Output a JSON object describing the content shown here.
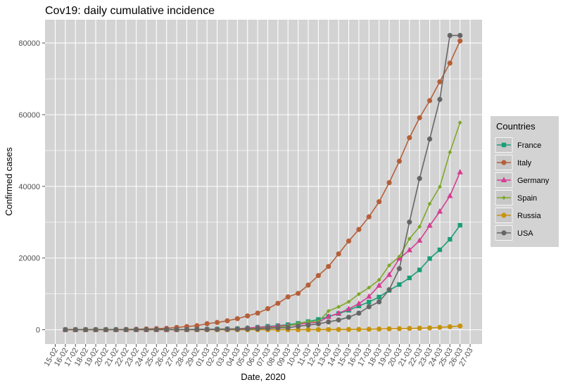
{
  "chart_data": {
    "type": "line",
    "title": "Cov19: daily cumulative incidence",
    "xlabel": "Date, 2020",
    "ylabel": "Confirmed cases",
    "x_tick_labels": [
      "15-02",
      "16-02",
      "17-02",
      "18-02",
      "19-02",
      "20-02",
      "21-02",
      "22-02",
      "23-02",
      "24-02",
      "25-02",
      "26-02",
      "27-02",
      "28-02",
      "29-02",
      "01-03",
      "02-03",
      "03-03",
      "04-03",
      "05-03",
      "06-03",
      "07-03",
      "08-03",
      "09-03",
      "10-03",
      "11-03",
      "12-03",
      "13-03",
      "14-03",
      "15-03",
      "16-03",
      "17-03",
      "18-03",
      "19-03",
      "20-03",
      "21-03",
      "22-03",
      "23-03",
      "24-03",
      "25-03",
      "26-03",
      "27-03"
    ],
    "x": [
      "16-02",
      "17-02",
      "18-02",
      "19-02",
      "20-02",
      "21-02",
      "22-02",
      "23-02",
      "24-02",
      "25-02",
      "26-02",
      "27-02",
      "28-02",
      "29-02",
      "01-03",
      "02-03",
      "03-03",
      "04-03",
      "05-03",
      "06-03",
      "07-03",
      "08-03",
      "09-03",
      "10-03",
      "11-03",
      "12-03",
      "13-03",
      "14-03",
      "15-03",
      "16-03",
      "17-03",
      "18-03",
      "19-03",
      "20-03",
      "21-03",
      "22-03",
      "23-03",
      "24-03",
      "25-03",
      "26-03"
    ],
    "y_ticks": [
      0,
      20000,
      40000,
      60000,
      80000
    ],
    "y_tick_labels": [
      "0",
      "20000",
      "40000",
      "60000",
      "80000"
    ],
    "ylim": [
      -4000,
      86500
    ],
    "grid": true,
    "legend": {
      "title": "Countries",
      "position": "right"
    },
    "series": [
      {
        "name": "France",
        "color": "#1b9e77",
        "marker": "square",
        "values": [
          12,
          12,
          12,
          12,
          12,
          12,
          12,
          12,
          12,
          14,
          18,
          38,
          57,
          100,
          130,
          191,
          212,
          285,
          423,
          653,
          949,
          1126,
          1412,
          1784,
          2281,
          2876,
          3661,
          4499,
          5423,
          6633,
          7730,
          9134,
          10995,
          12612,
          14459,
          16689,
          19856,
          22304,
          25233,
          29155
        ]
      },
      {
        "name": "Italy",
        "color": "#b5603a",
        "marker": "circle",
        "values": [
          3,
          3,
          3,
          3,
          3,
          20,
          79,
          150,
          229,
          322,
          400,
          650,
          888,
          1128,
          1694,
          2036,
          2502,
          3089,
          3858,
          4636,
          5883,
          7375,
          9172,
          10149,
          12462,
          15113,
          17660,
          21157,
          24747,
          27980,
          31506,
          35713,
          41035,
          47021,
          53578,
          59138,
          63927,
          69176,
          74386,
          80589
        ]
      },
      {
        "name": "Germany",
        "color": "#d63e94",
        "marker": "triangle",
        "values": [
          16,
          16,
          16,
          16,
          16,
          16,
          16,
          16,
          16,
          16,
          18,
          26,
          48,
          79,
          130,
          159,
          196,
          262,
          482,
          670,
          799,
          1040,
          1176,
          1457,
          1908,
          2078,
          3675,
          4585,
          5795,
          7272,
          9257,
          12327,
          15320,
          19848,
          22213,
          24873,
          29056,
          32986,
          37323,
          43938
        ]
      },
      {
        "name": "Spain",
        "color": "#7ea82b",
        "marker": "diamond",
        "values": [
          2,
          2,
          2,
          2,
          2,
          2,
          2,
          2,
          2,
          6,
          13,
          15,
          32,
          45,
          84,
          120,
          165,
          222,
          259,
          400,
          500,
          673,
          1073,
          1695,
          2277,
          2277,
          5232,
          6391,
          7798,
          9942,
          11748,
          13910,
          17963,
          20410,
          25374,
          28768,
          35136,
          39885,
          49515,
          57786
        ]
      },
      {
        "name": "Russia",
        "color": "#c8930c",
        "marker": "circle",
        "values": [
          2,
          2,
          2,
          2,
          2,
          2,
          2,
          2,
          2,
          2,
          2,
          2,
          2,
          2,
          2,
          3,
          3,
          3,
          4,
          13,
          13,
          17,
          17,
          20,
          28,
          45,
          59,
          63,
          90,
          114,
          147,
          199,
          253,
          306,
          367,
          438,
          495,
          658,
          840,
          1036
        ]
      },
      {
        "name": "USA",
        "color": "#666666",
        "marker": "circle",
        "values": [
          15,
          15,
          15,
          15,
          15,
          15,
          35,
          35,
          35,
          53,
          57,
          60,
          60,
          68,
          74,
          98,
          118,
          149,
          217,
          262,
          402,
          518,
          583,
          959,
          1281,
          1663,
          2179,
          2727,
          3499,
          4632,
          6421,
          7786,
          11178,
          17038,
          30041,
          42202,
          53202,
          64253,
          82101,
          82101
        ]
      }
    ]
  }
}
